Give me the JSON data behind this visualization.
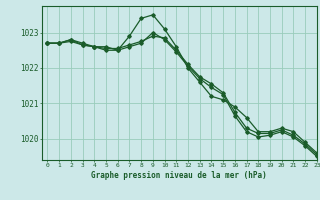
{
  "bg_color": "#cce8e8",
  "grid_color": "#99ccbb",
  "line_color": "#1a5c2a",
  "xlabel": "Graphe pression niveau de la mer (hPa)",
  "xlim": [
    -0.5,
    23
  ],
  "ylim": [
    1019.4,
    1023.75
  ],
  "yticks": [
    1020,
    1021,
    1022,
    1023
  ],
  "xticks": [
    0,
    1,
    2,
    3,
    4,
    5,
    6,
    7,
    8,
    9,
    10,
    11,
    12,
    13,
    14,
    15,
    16,
    17,
    18,
    19,
    20,
    21,
    22,
    23
  ],
  "series1": {
    "x": [
      0,
      1,
      2,
      3,
      4,
      5,
      6,
      7,
      8,
      9,
      10,
      11,
      12,
      13,
      14,
      15,
      16,
      17,
      18,
      19,
      20,
      21,
      22,
      23
    ],
    "y": [
      1022.7,
      1022.7,
      1022.8,
      1022.7,
      1022.6,
      1022.6,
      1022.5,
      1022.9,
      1023.4,
      1023.5,
      1023.1,
      1022.6,
      1022.0,
      1021.6,
      1021.2,
      1021.1,
      1020.9,
      1020.6,
      1020.2,
      1020.2,
      1020.3,
      1020.2,
      1019.9,
      1019.6
    ]
  },
  "series2": {
    "x": [
      0,
      1,
      2,
      3,
      4,
      5,
      6,
      7,
      8,
      9,
      10,
      11,
      12,
      13,
      14,
      15,
      16,
      17,
      18,
      19,
      20,
      21,
      22,
      23
    ],
    "y": [
      1022.7,
      1022.7,
      1022.8,
      1022.65,
      1022.6,
      1022.55,
      1022.55,
      1022.65,
      1022.75,
      1022.9,
      1022.85,
      1022.5,
      1022.1,
      1021.75,
      1021.55,
      1021.3,
      1020.75,
      1020.3,
      1020.15,
      1020.15,
      1020.25,
      1020.1,
      1019.85,
      1019.55
    ]
  },
  "series3": {
    "x": [
      0,
      1,
      2,
      3,
      4,
      5,
      6,
      7,
      8,
      9,
      10,
      11,
      12,
      13,
      14,
      15,
      16,
      17,
      18,
      19,
      20,
      21,
      22,
      23
    ],
    "y": [
      1022.7,
      1022.7,
      1022.75,
      1022.65,
      1022.6,
      1022.5,
      1022.5,
      1022.6,
      1022.7,
      1023.0,
      1022.8,
      1022.45,
      1022.05,
      1021.7,
      1021.45,
      1021.25,
      1020.65,
      1020.2,
      1020.05,
      1020.1,
      1020.2,
      1020.05,
      1019.8,
      1019.5
    ]
  }
}
